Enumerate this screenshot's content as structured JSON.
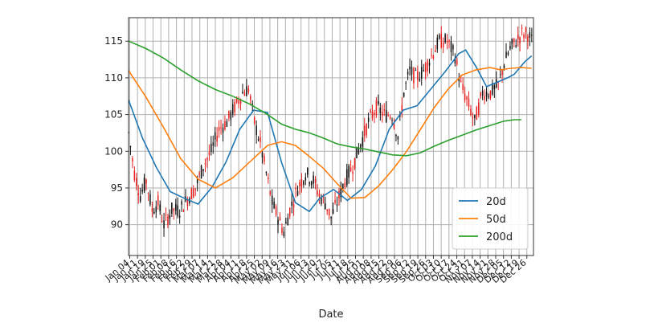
{
  "chart_data": {
    "type": "candlestick",
    "xlabel": "Date",
    "ylabel": "",
    "ylim": [
      85.8,
      118.2
    ],
    "yticks": [
      90,
      95,
      100,
      105,
      110,
      115
    ],
    "grid": true,
    "legend_position": "bottom-right",
    "x_tick_labels": [
      "Jan 04",
      "Jan 11",
      "Jan 19",
      "Jan 25",
      "Feb 01",
      "Feb 08",
      "Feb 16",
      "Feb 22",
      "Feb 29",
      "Mar 07",
      "Mar 14",
      "Mar 21",
      "Mar 28",
      "Apr 04",
      "Apr 11",
      "Apr 18",
      "Apr 25",
      "May 02",
      "May 09",
      "May 16",
      "May 23",
      "May 31",
      "Jun 06",
      "Jun 13",
      "Jun 20",
      "Jun 27",
      "Jul 05",
      "Jul 11",
      "Jul 18",
      "Jul 25",
      "Aug 01",
      "Aug 08",
      "Aug 15",
      "Aug 22",
      "Aug 29",
      "Sep 06",
      "Sep 12",
      "Sep 19",
      "Sep 26",
      "Oct 03",
      "Oct 10",
      "Oct 17",
      "Oct 24",
      "Oct 31",
      "Nov 07",
      "Nov 14",
      "Nov 21",
      "Nov 28",
      "Dec 05",
      "Dec 12",
      "Dec 19",
      "Dec 26"
    ],
    "candle_anchors": [
      [
        0,
        102.5
      ],
      [
        3,
        97
      ],
      [
        6,
        94
      ],
      [
        9,
        96
      ],
      [
        12,
        92
      ],
      [
        15,
        93
      ],
      [
        18,
        90
      ],
      [
        22,
        92
      ],
      [
        26,
        92
      ],
      [
        30,
        93.5
      ],
      [
        34,
        95
      ],
      [
        38,
        98
      ],
      [
        42,
        100
      ],
      [
        46,
        103
      ],
      [
        50,
        104
      ],
      [
        54,
        106
      ],
      [
        58,
        108
      ],
      [
        61,
        108.5
      ],
      [
        64,
        104
      ],
      [
        67,
        101
      ],
      [
        70,
        97
      ],
      [
        73,
        93
      ],
      [
        76,
        91
      ],
      [
        79,
        89
      ],
      [
        82,
        92
      ],
      [
        86,
        95
      ],
      [
        90,
        97
      ],
      [
        94,
        96
      ],
      [
        97,
        94
      ],
      [
        100,
        93
      ],
      [
        103,
        91
      ],
      [
        106,
        93
      ],
      [
        110,
        96
      ],
      [
        114,
        98
      ],
      [
        118,
        101
      ],
      [
        122,
        104
      ],
      [
        126,
        106
      ],
      [
        130,
        105
      ],
      [
        134,
        105
      ],
      [
        137,
        102
      ],
      [
        140,
        108
      ],
      [
        143,
        111
      ],
      [
        146,
        110
      ],
      [
        150,
        111
      ],
      [
        154,
        113
      ],
      [
        158,
        115
      ],
      [
        162,
        115
      ],
      [
        166,
        113
      ],
      [
        169,
        109
      ],
      [
        172,
        107
      ],
      [
        176,
        104
      ],
      [
        180,
        108
      ],
      [
        184,
        108
      ],
      [
        188,
        109
      ],
      [
        191,
        112
      ],
      [
        194,
        114
      ],
      [
        197,
        115
      ],
      [
        200,
        116
      ],
      [
        203,
        116
      ],
      [
        205,
        115
      ]
    ],
    "candle_up_color": "#111111",
    "candle_down_color": "#e8201f",
    "series": [
      {
        "name": "20d",
        "color": "#1f77b4",
        "points": [
          [
            0,
            107
          ],
          [
            8,
            101.8
          ],
          [
            16,
            97.8
          ],
          [
            24,
            94.5
          ],
          [
            32,
            93.6
          ],
          [
            40,
            92.8
          ],
          [
            48,
            95.1
          ],
          [
            56,
            98.5
          ],
          [
            64,
            103
          ],
          [
            72,
            105.6
          ],
          [
            80,
            105.3
          ],
          [
            88,
            98.5
          ],
          [
            96,
            93
          ],
          [
            104,
            91.8
          ],
          [
            110,
            93.6
          ],
          [
            118,
            94.8
          ],
          [
            126,
            93.3
          ],
          [
            134,
            94.8
          ],
          [
            142,
            98
          ],
          [
            150,
            103
          ],
          [
            158,
            105.6
          ],
          [
            166,
            106.2
          ],
          [
            174,
            108.5
          ],
          [
            182,
            110.8
          ],
          [
            190,
            113.3
          ],
          [
            194,
            113.8
          ],
          [
            200,
            111.5
          ],
          [
            206,
            108.8
          ],
          [
            212,
            109.4
          ],
          [
            218,
            110
          ],
          [
            222,
            110.5
          ],
          [
            228,
            112.2
          ],
          [
            232,
            113
          ]
        ]
      },
      {
        "name": "50d",
        "color": "#ff7f0e",
        "points": [
          [
            0,
            111
          ],
          [
            10,
            107.4
          ],
          [
            20,
            103.3
          ],
          [
            30,
            99
          ],
          [
            40,
            96.2
          ],
          [
            50,
            95
          ],
          [
            60,
            96.4
          ],
          [
            70,
            98.6
          ],
          [
            80,
            100.8
          ],
          [
            88,
            101.3
          ],
          [
            96,
            100.8
          ],
          [
            104,
            99.3
          ],
          [
            112,
            97.7
          ],
          [
            120,
            95.6
          ],
          [
            128,
            93.6
          ],
          [
            136,
            93.7
          ],
          [
            144,
            95.3
          ],
          [
            152,
            97.5
          ],
          [
            160,
            100
          ],
          [
            168,
            103
          ],
          [
            176,
            106
          ],
          [
            184,
            108.5
          ],
          [
            192,
            110.4
          ],
          [
            200,
            111.1
          ],
          [
            208,
            111.4
          ],
          [
            214,
            111.1
          ],
          [
            220,
            111.3
          ],
          [
            226,
            111.4
          ],
          [
            232,
            111.3
          ]
        ]
      },
      {
        "name": "200d",
        "color": "#2ca02c",
        "points": [
          [
            0,
            115
          ],
          [
            10,
            114
          ],
          [
            20,
            112.7
          ],
          [
            30,
            111.1
          ],
          [
            40,
            109.6
          ],
          [
            50,
            108.4
          ],
          [
            60,
            107.5
          ],
          [
            70,
            106.4
          ],
          [
            80,
            105
          ],
          [
            88,
            103.7
          ],
          [
            96,
            103
          ],
          [
            104,
            102.5
          ],
          [
            112,
            101.8
          ],
          [
            120,
            101
          ],
          [
            128,
            100.6
          ],
          [
            136,
            100.3
          ],
          [
            144,
            99.9
          ],
          [
            152,
            99.5
          ],
          [
            160,
            99.4
          ],
          [
            168,
            99.8
          ],
          [
            176,
            100.7
          ],
          [
            184,
            101.5
          ],
          [
            192,
            102.2
          ],
          [
            200,
            102.9
          ],
          [
            208,
            103.5
          ],
          [
            216,
            104.1
          ],
          [
            222,
            104.3
          ],
          [
            226,
            104.3
          ]
        ]
      }
    ]
  }
}
